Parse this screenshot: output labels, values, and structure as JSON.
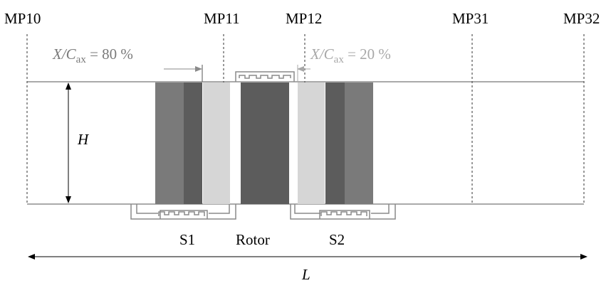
{
  "measurement_planes": [
    {
      "label": "MP10"
    },
    {
      "label": "MP11"
    },
    {
      "label": "MP12"
    },
    {
      "label": "MP31"
    },
    {
      "label": "MP32"
    }
  ],
  "annotations": {
    "left_ratio": {
      "var": "X/C",
      "sub": "ax",
      "eq": " = 80 %"
    },
    "right_ratio": {
      "var": "X/C",
      "sub": "ax",
      "eq": " = 20 %"
    },
    "height": "H",
    "length": "L"
  },
  "stages": {
    "s1": "S1",
    "rotor": "Rotor",
    "s2": "S2"
  },
  "colors": {
    "line": "#000000",
    "dashed": "#333333",
    "dark": "#5c5c5c",
    "medium": "#7a7a7a",
    "light": "#d6d6d6",
    "light_text": "#a8a8a8",
    "gray_text": "#7a7a7a",
    "labyrinth": "#8a8a8a"
  }
}
